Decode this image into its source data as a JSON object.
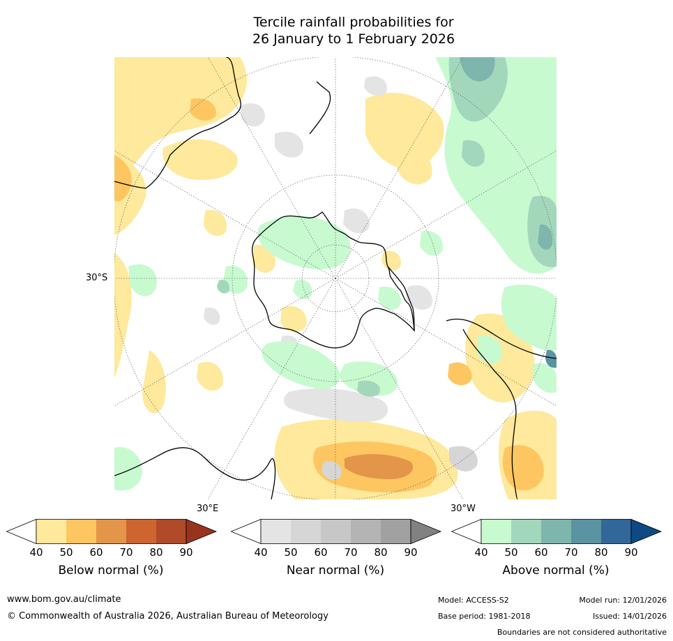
{
  "title": {
    "line1": "Tercile rainfall probabilities for",
    "line2": "26 January to 1 February 2026"
  },
  "map": {
    "projection": "south-polar-stereographic",
    "lat_label": "30°S",
    "lon_labels": [
      "30°E",
      "30°W"
    ]
  },
  "colorbars": [
    {
      "label": "Below normal (%)",
      "ticks": [
        "40",
        "50",
        "60",
        "70",
        "80",
        "90"
      ],
      "under_color": "#ffffff",
      "colors": [
        "#fee99c",
        "#fec661",
        "#e39549",
        "#ce6531",
        "#b04a29"
      ],
      "over_color": "#99321f"
    },
    {
      "label": "Near normal (%)",
      "ticks": [
        "40",
        "50",
        "60",
        "70",
        "80",
        "90"
      ],
      "under_color": "#ffffff",
      "colors": [
        "#e4e4e4",
        "#d6d6d6",
        "#c7c7c7",
        "#b4b4b4",
        "#a1a1a1"
      ],
      "over_color": "#818181"
    },
    {
      "label": "Above normal (%)",
      "ticks": [
        "40",
        "50",
        "60",
        "70",
        "80",
        "90"
      ],
      "under_color": "#ffffff",
      "colors": [
        "#c8fad0",
        "#a3d7bb",
        "#7eb6ad",
        "#5a93a1",
        "#326799"
      ],
      "over_color": "#0d4a83"
    }
  ],
  "footer": {
    "website": "www.bom.gov.au/climate",
    "copyright": "© Commonwealth of Australia 2026, Australian Bureau of Meteorology",
    "model": "Model: ACCESS-S2",
    "base_period": "Base period: 1981-2018",
    "model_run": "Model run: 12/01/2026",
    "issued": "Issued: 14/01/2026",
    "disclaimer": "Boundaries are not considered authoritative"
  }
}
